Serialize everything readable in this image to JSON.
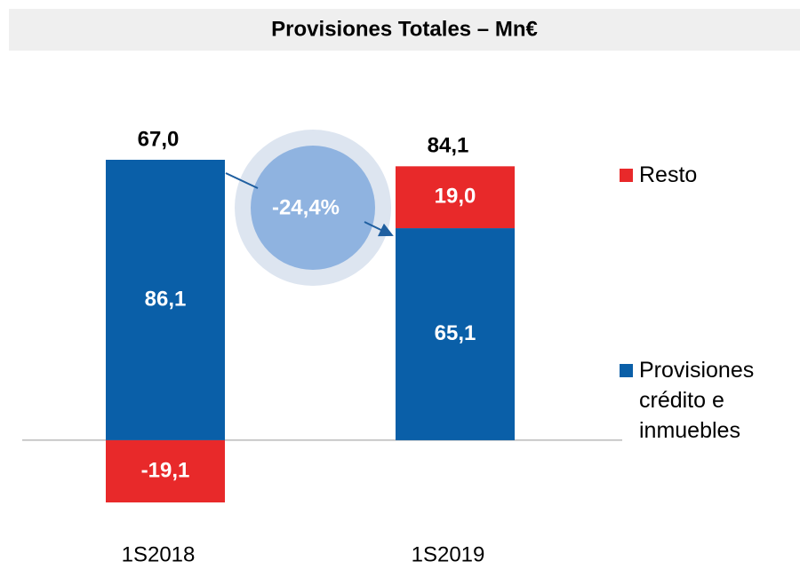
{
  "chart_data": {
    "type": "stacked_bar",
    "title": "Provisiones Totales – Mn€",
    "categories": [
      "1S2018",
      "1S2019"
    ],
    "series": [
      {
        "name": "Provisiones crédito e inmuebles",
        "color": "#0a5fa8",
        "values": [
          86.1,
          65.1
        ],
        "value_labels": [
          "86,1",
          "65,1"
        ]
      },
      {
        "name": "Resto",
        "color": "#e8292a",
        "values": [
          -19.1,
          19.0
        ],
        "value_labels": [
          "-19,1",
          "19,0"
        ]
      }
    ],
    "totals": [
      67.0,
      84.1
    ],
    "total_labels": [
      "67,0",
      "84,1"
    ],
    "annotation": "-24,4%"
  }
}
